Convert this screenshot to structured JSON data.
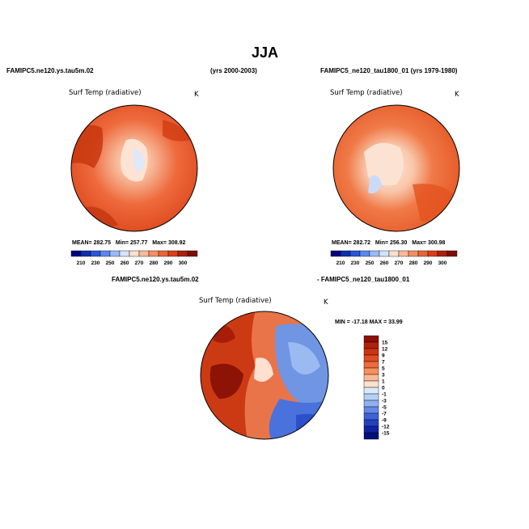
{
  "title": "JJA",
  "top_left": {
    "case": "FAMIPC5.ne120.ys.tau5m.02",
    "years": "(yrs 2000-2003)",
    "variable": "Surf Temp (radiative)",
    "units": "K",
    "stats": {
      "mean": "282.75",
      "min": "257.77",
      "max": "308.92"
    },
    "stats_text": {
      "mean_label": "MEAN=",
      "min_label": "Min=",
      "max_label": "Max="
    }
  },
  "top_right": {
    "case": "FAMIPC5_ne120_tau1800_01 (yrs 1979-1980)",
    "variable": "Surf Temp (radiative)",
    "units": "K",
    "stats": {
      "mean": "282.72",
      "min": "256.30",
      "max": "300.98"
    },
    "stats_text": {
      "mean_label": "MEAN=",
      "min_label": "Min=",
      "max_label": "Max="
    }
  },
  "bottom": {
    "case_a": "FAMIPC5.ne120.ys.tau5m.02",
    "case_b": "- FAMIPC5_ne120_tau1800_01",
    "variable": "Surf Temp (radiative)",
    "units": "K",
    "stats_text": "MIN = -17.18 MAX =  33.99"
  },
  "abs_colorbar": {
    "tick_labels": [
      "210",
      "230",
      "250",
      "260",
      "270",
      "280",
      "290",
      "300"
    ],
    "colors": [
      "#00007f",
      "#0d2fae",
      "#2a56d6",
      "#5a86ee",
      "#9ab9f7",
      "#d3e3fb",
      "#fbe0cf",
      "#f9b99a",
      "#f38f65",
      "#ea6438",
      "#d83f17",
      "#ad2107",
      "#7e0e02"
    ]
  },
  "diff_colorbar": {
    "tick_labels": [
      "15",
      "12",
      "9",
      "7",
      "5",
      "3",
      "1",
      "0",
      "-1",
      "-3",
      "-5",
      "-7",
      "-9",
      "-12",
      "-15"
    ],
    "colors": [
      "#8c1006",
      "#b0220b",
      "#cc3512",
      "#e04c23",
      "#ef6a3c",
      "#f6905f",
      "#fbb996",
      "#fde1cf",
      "#dce9fb",
      "#b7cff7",
      "#8fb0f0",
      "#6489e6",
      "#3d63d9",
      "#2340bf",
      "#0f23a1",
      "#03107a"
    ]
  }
}
